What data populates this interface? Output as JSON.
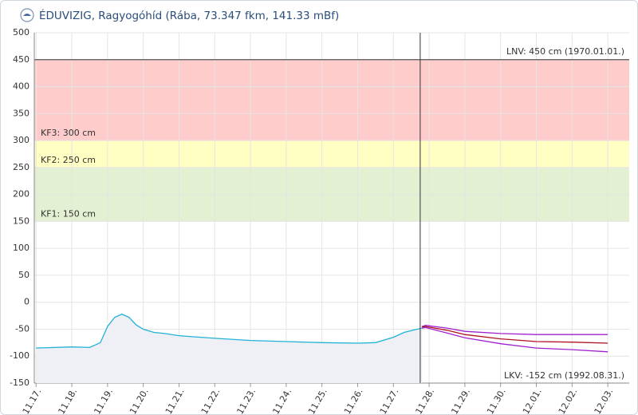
{
  "chart_data": {
    "type": "line",
    "title": "ÉDUVIZIG, Ragyogóhíd (Rába, 73.347 fkm, 141.33 mBf)",
    "ylim": [
      -150,
      500
    ],
    "yticks": [
      -150,
      -100,
      -50,
      0,
      50,
      100,
      150,
      200,
      250,
      300,
      350,
      400,
      450,
      500
    ],
    "xlim": [
      -0.05,
      16.6
    ],
    "xticks": [
      {
        "value": 0,
        "label": "11.17."
      },
      {
        "value": 1,
        "label": "11.18."
      },
      {
        "value": 2,
        "label": "11.19."
      },
      {
        "value": 3,
        "label": "11.20."
      },
      {
        "value": 4,
        "label": "11.21."
      },
      {
        "value": 5,
        "label": "11.22."
      },
      {
        "value": 6,
        "label": "11.23."
      },
      {
        "value": 7,
        "label": "11.24."
      },
      {
        "value": 8,
        "label": "11.25."
      },
      {
        "value": 9,
        "label": "11.26."
      },
      {
        "value": 10,
        "label": "11.27."
      },
      {
        "value": 11,
        "label": "11.28."
      },
      {
        "value": 12,
        "label": "11.29."
      },
      {
        "value": 13,
        "label": "11.30."
      },
      {
        "value": 14,
        "label": "12.01."
      },
      {
        "value": 15,
        "label": "12.02."
      },
      {
        "value": 16,
        "label": "12.03."
      }
    ],
    "grid": true,
    "bands": [
      {
        "label": "KF3: 300 cm",
        "from": 300,
        "to": 450,
        "color": "#ffcccc"
      },
      {
        "label": "KF2: 250 cm",
        "from": 250,
        "to": 300,
        "color": "#ffffc4"
      },
      {
        "label": "KF1: 150 cm",
        "from": 150,
        "to": 250,
        "color": "#e3f1d2"
      }
    ],
    "levels": [
      {
        "label": "LNV: 450 cm (1970.01.01.)",
        "value": 450
      },
      {
        "label": "LKV: -152 cm (1992.08.31.)",
        "value": -152
      }
    ],
    "now": 10.75,
    "series": [
      {
        "color": "#22b2d6",
        "area": "#eef0f6",
        "x": [
          0,
          1,
          1.5,
          1.8,
          2.0,
          2.2,
          2.4,
          2.6,
          2.8,
          3.0,
          3.3,
          3.6,
          4,
          5,
          6,
          7,
          8,
          9,
          9.5,
          10,
          10.3,
          10.6,
          10.8
        ],
        "values": [
          -85,
          -83,
          -84,
          -75,
          -45,
          -28,
          -22,
          -28,
          -42,
          -50,
          -56,
          -58,
          -62,
          -67,
          -71,
          -73,
          -75,
          -76,
          -75,
          -65,
          -56,
          -51,
          -48
        ]
      },
      {
        "color": "#a020d0",
        "x": [
          10.8,
          10.9,
          11.5,
          12,
          13,
          14,
          15,
          16
        ],
        "values": [
          -45,
          -43,
          -48,
          -54,
          -58,
          -60,
          -60,
          -60
        ]
      },
      {
        "color": "#b01020",
        "x": [
          10.8,
          10.9,
          11.5,
          12,
          13,
          14,
          15,
          16
        ],
        "values": [
          -46,
          -45,
          -52,
          -60,
          -68,
          -73,
          -74,
          -76
        ]
      },
      {
        "color": "#a020d0",
        "x": [
          10.8,
          10.9,
          11.5,
          12,
          13,
          14,
          15,
          16
        ],
        "values": [
          -48,
          -47,
          -57,
          -66,
          -77,
          -85,
          -88,
          -92
        ]
      }
    ]
  }
}
